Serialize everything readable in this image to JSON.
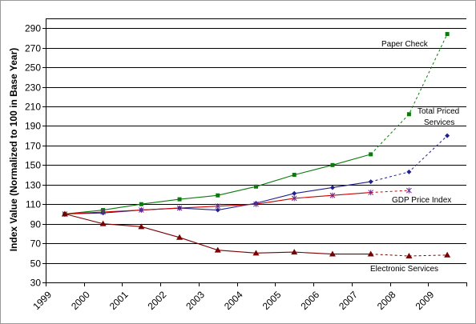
{
  "chart_data": {
    "type": "line",
    "title": "",
    "xlabel": "",
    "ylabel": "Index Value (Normalized to 100 in Base Year)",
    "x": [
      "1999",
      "2000",
      "2001",
      "2002",
      "2003",
      "2004",
      "2005",
      "2006",
      "2007",
      "2008",
      "2009"
    ],
    "ylim": [
      30,
      300
    ],
    "yticks": [
      30,
      50,
      70,
      90,
      110,
      130,
      150,
      170,
      190,
      210,
      230,
      250,
      270,
      290
    ],
    "grid": true,
    "legend": "none",
    "series": [
      {
        "name": "Paper Check",
        "color": "#0a7a0a",
        "marker": "square",
        "points": [
          [
            0.5,
            100
          ],
          [
            1.5,
            104
          ],
          [
            2.5,
            110
          ],
          [
            3.5,
            115
          ],
          [
            4.5,
            119
          ],
          [
            5.5,
            128
          ],
          [
            6.5,
            140
          ],
          [
            7.5,
            150
          ],
          [
            8.5,
            161
          ],
          [
            9.5,
            202
          ],
          [
            10.5,
            284
          ]
        ],
        "dashed_from_index": 8
      },
      {
        "name": "Total Priced Services",
        "color": "#1f1f8f",
        "marker": "diamond",
        "points": [
          [
            0.5,
            100
          ],
          [
            1.5,
            101
          ],
          [
            2.5,
            104
          ],
          [
            3.5,
            106
          ],
          [
            4.5,
            104
          ],
          [
            5.5,
            111
          ],
          [
            6.5,
            121
          ],
          [
            7.5,
            127
          ],
          [
            8.5,
            133
          ],
          [
            9.5,
            143
          ],
          [
            10.5,
            180
          ]
        ],
        "dashed_from_index": 8
      },
      {
        "name": "GDP Price Index",
        "color": "#cc0000",
        "marker": "star",
        "points": [
          [
            0.5,
            100
          ],
          [
            1.5,
            102
          ],
          [
            2.5,
            104
          ],
          [
            3.5,
            106
          ],
          [
            4.5,
            108
          ],
          [
            5.5,
            110
          ],
          [
            6.5,
            116
          ],
          [
            7.5,
            119
          ],
          [
            8.5,
            122
          ],
          [
            9.5,
            124
          ]
        ],
        "dashed_from_index": 8
      },
      {
        "name": "Electronic  Services",
        "color": "#7a0000",
        "marker": "triangle",
        "points": [
          [
            0.5,
            100
          ],
          [
            1.5,
            90
          ],
          [
            2.5,
            87
          ],
          [
            3.5,
            76
          ],
          [
            4.5,
            63
          ],
          [
            5.5,
            60
          ],
          [
            6.5,
            61
          ],
          [
            7.5,
            59
          ],
          [
            8.5,
            59
          ],
          [
            9.5,
            57
          ],
          [
            10.5,
            58
          ]
        ],
        "dashed_from_index": 8
      }
    ],
    "annotations": [
      {
        "text": "Paper Check",
        "series": 0
      },
      {
        "text": "Total Priced",
        "series": 1
      },
      {
        "text": "Services",
        "series": 1
      },
      {
        "text": "GDP Price Index",
        "series": 2
      },
      {
        "text": "Electronic  Services",
        "series": 3
      }
    ]
  }
}
